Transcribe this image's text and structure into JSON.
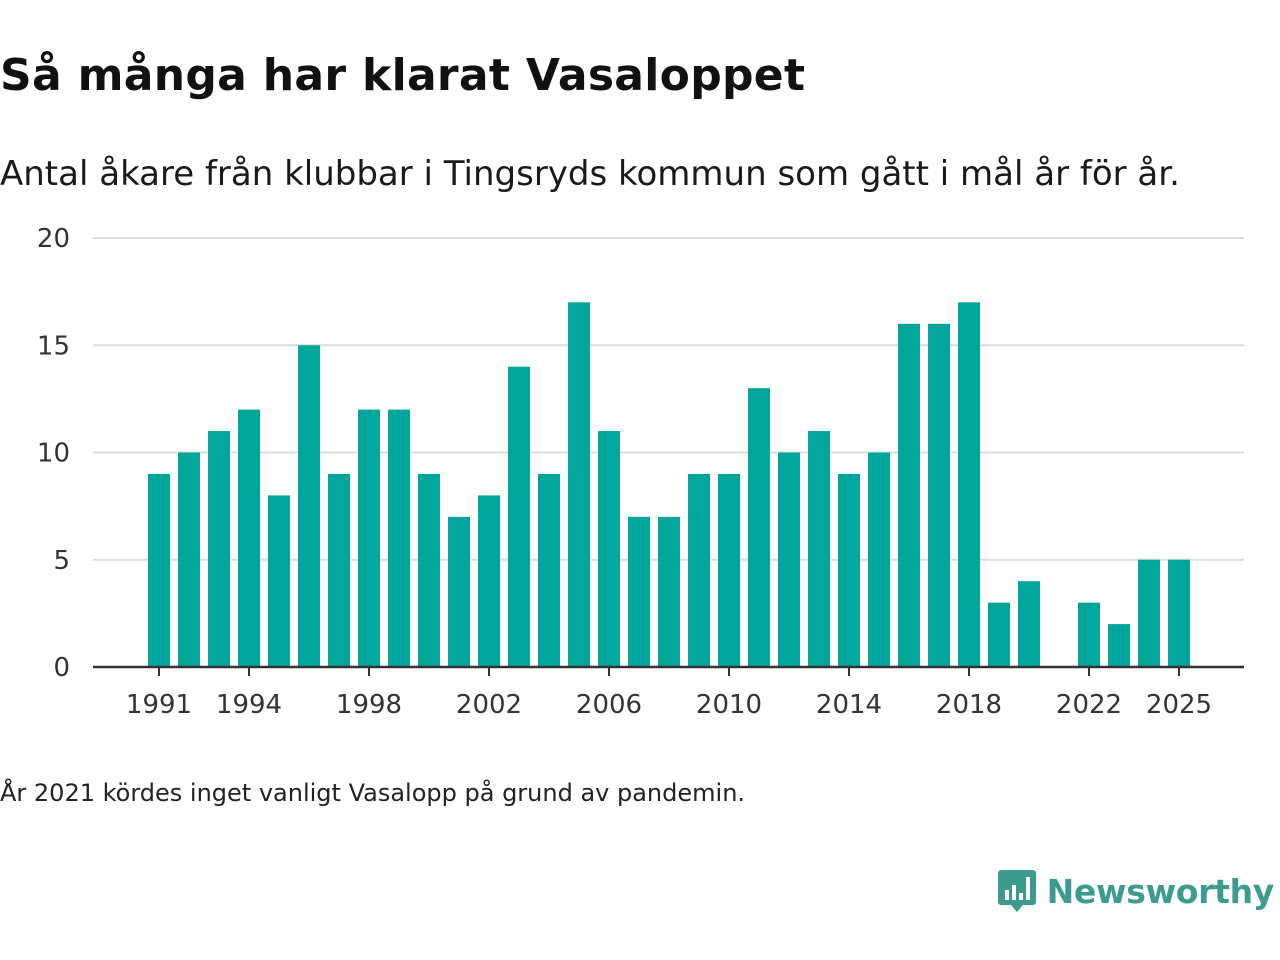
{
  "header": {
    "title": "Så många har klarat Vasaloppet",
    "subtitle": "Antal åkare från klubbar i Tingsryds kommun som gått i mål år för år."
  },
  "footnote": "År 2021 kördes inget vanligt Vasalopp på grund av pandemin.",
  "brand": {
    "name": "Newsworthy",
    "icon": "newsworthy-logo-icon",
    "color": "#3d9a90"
  },
  "colors": {
    "bar": "#00a699",
    "grid": "#dcdcdc",
    "axis": "#333333"
  },
  "chart_data": {
    "type": "bar",
    "title": "Så många har klarat Vasaloppet",
    "xlabel": "",
    "ylabel": "",
    "categories": [
      1991,
      1992,
      1993,
      1994,
      1995,
      1996,
      1997,
      1998,
      1999,
      2000,
      2001,
      2002,
      2003,
      2004,
      2005,
      2006,
      2007,
      2008,
      2009,
      2010,
      2011,
      2012,
      2013,
      2014,
      2015,
      2016,
      2017,
      2018,
      2019,
      2020,
      2021,
      2022,
      2023,
      2024,
      2025
    ],
    "values": [
      9,
      10,
      11,
      12,
      8,
      15,
      9,
      12,
      12,
      9,
      7,
      8,
      14,
      9,
      17,
      11,
      7,
      7,
      9,
      9,
      13,
      10,
      11,
      9,
      10,
      16,
      16,
      17,
      3,
      4,
      null,
      3,
      2,
      5,
      5
    ],
    "ylim": [
      0,
      20
    ],
    "yticks": [
      0,
      5,
      10,
      15,
      20
    ],
    "xticks": [
      1991,
      1994,
      1998,
      2002,
      2006,
      2010,
      2014,
      2018,
      2022,
      2025
    ],
    "grid": true,
    "legend": "none"
  }
}
